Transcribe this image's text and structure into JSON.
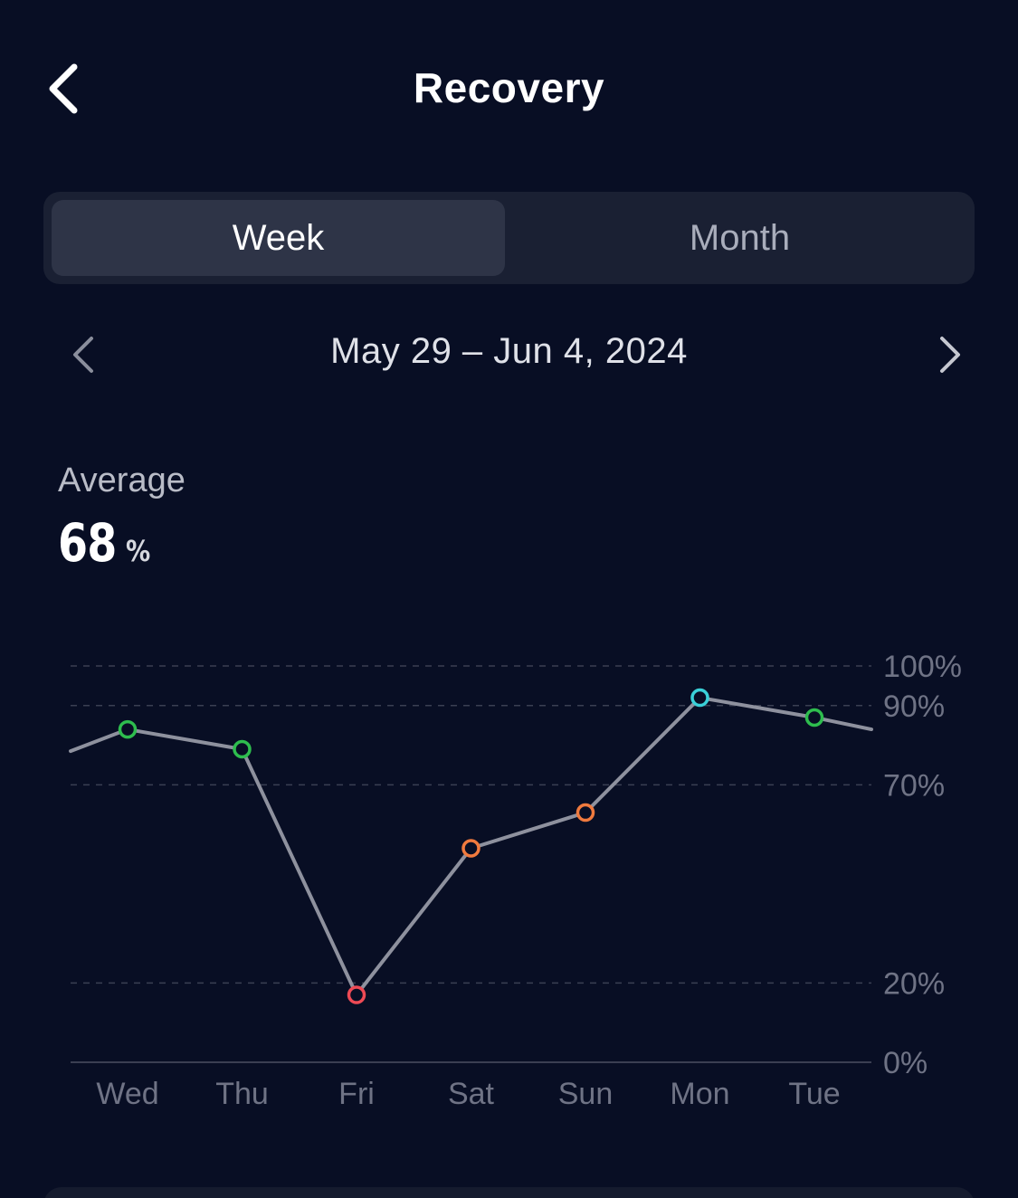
{
  "header": {
    "title": "Recovery",
    "back_icon": "chevron-left-icon"
  },
  "period_tabs": [
    {
      "label": "Week",
      "selected": true
    },
    {
      "label": "Month",
      "selected": false
    }
  ],
  "date_range": {
    "label": "May 29 – Jun 4, 2024",
    "prev_icon": "chevron-left-icon",
    "next_icon": "chevron-right-icon"
  },
  "summary": {
    "label": "Average",
    "value": "68",
    "unit": "%"
  },
  "colors": {
    "background": "#080e24",
    "line": "#8e919e",
    "grid": "#3a3f52",
    "axis_text": "#6f7385",
    "green": "#2ebd4e",
    "orange": "#f07a3e",
    "red": "#ee4a55",
    "cyan": "#3ad0d8"
  },
  "chart_data": {
    "type": "line",
    "categories": [
      "Wed",
      "Thu",
      "Fri",
      "Sat",
      "Sun",
      "Mon",
      "Tue"
    ],
    "series": [
      {
        "values": [
          84,
          79,
          17,
          54,
          63,
          92,
          87
        ],
        "point_colors": [
          "green",
          "green",
          "red",
          "orange",
          "orange",
          "cyan",
          "green"
        ]
      }
    ],
    "line_enters_from": 73,
    "line_exits_to": 81,
    "yticks": [
      "100%",
      "90%",
      "70%",
      "20%",
      "0%"
    ],
    "ytick_values": [
      100,
      90,
      70,
      20,
      0
    ],
    "ylim": [
      0,
      100
    ],
    "grid": true
  }
}
